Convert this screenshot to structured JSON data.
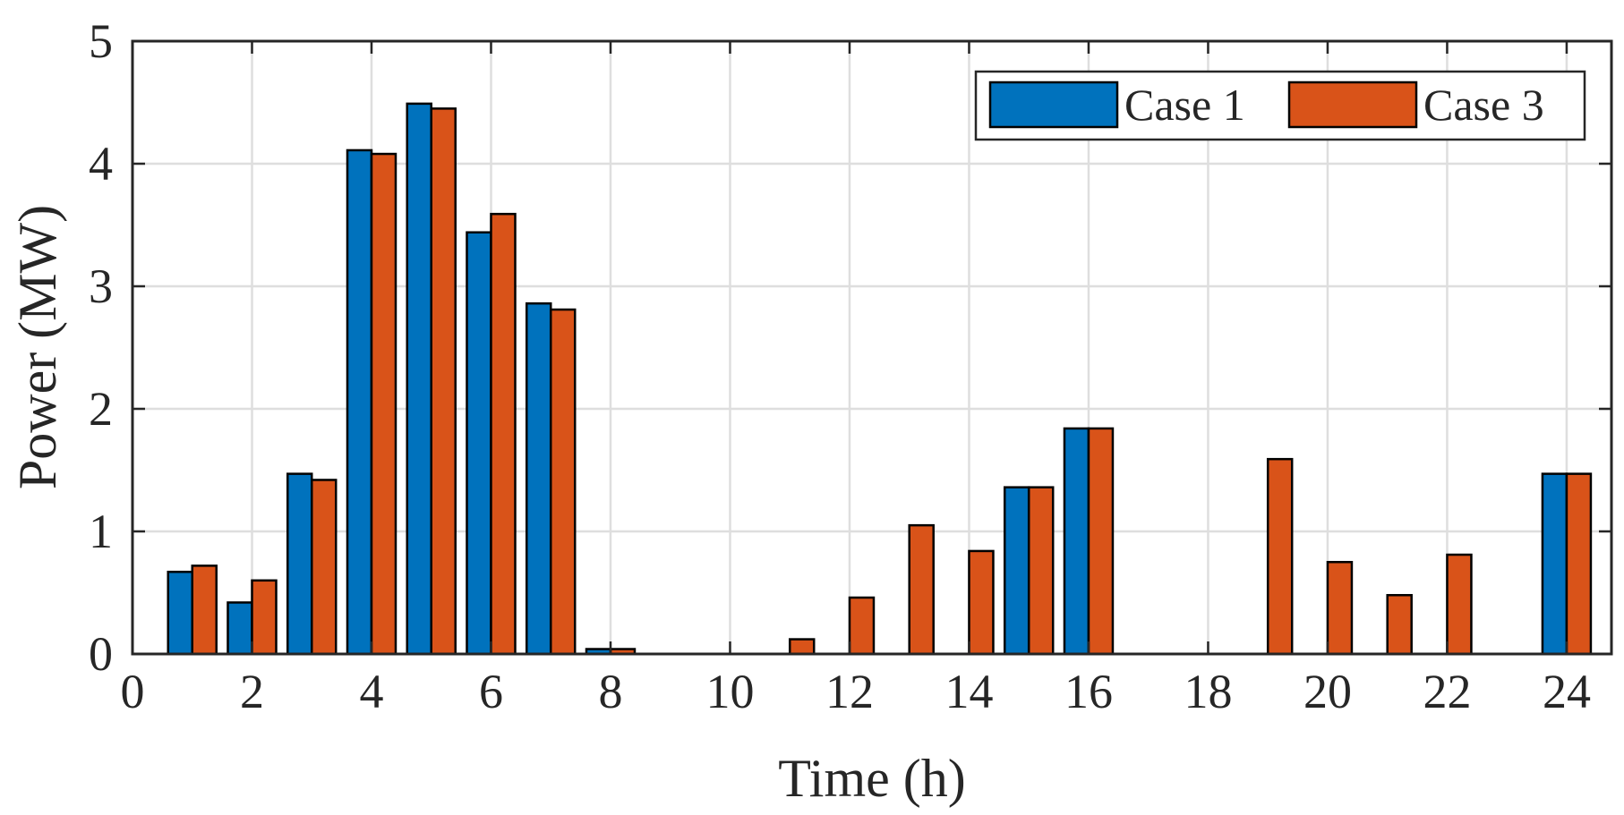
{
  "chart_data": {
    "type": "bar",
    "title": "",
    "xlabel": "Time (h)",
    "ylabel": "Power (MW)",
    "xlim": [
      0,
      24.75
    ],
    "ylim": [
      0,
      5
    ],
    "x_ticks": [
      0,
      2,
      4,
      6,
      8,
      10,
      12,
      14,
      16,
      18,
      20,
      22,
      24
    ],
    "y_ticks": [
      0,
      1,
      2,
      3,
      4,
      5
    ],
    "grid": true,
    "legend_position": "top-right",
    "categories": [
      1,
      2,
      3,
      4,
      5,
      6,
      7,
      8,
      9,
      10,
      11,
      12,
      13,
      14,
      15,
      16,
      17,
      18,
      19,
      20,
      21,
      22,
      23,
      24
    ],
    "series": [
      {
        "name": "Case 1",
        "color": "#0072BD",
        "values": [
          0.67,
          0.42,
          1.47,
          4.11,
          4.49,
          3.44,
          2.86,
          0.04,
          0,
          0,
          0,
          0,
          0,
          0,
          1.36,
          1.84,
          0,
          0,
          0,
          0,
          0,
          0,
          0,
          1.47
        ]
      },
      {
        "name": "Case 3",
        "color": "#D95319",
        "values": [
          0.72,
          0.6,
          1.42,
          4.08,
          4.45,
          3.59,
          2.81,
          0.04,
          0,
          0,
          0.12,
          0.46,
          1.05,
          0.84,
          1.36,
          1.84,
          0,
          0,
          1.59,
          0.75,
          0.48,
          0.81,
          0,
          1.47
        ]
      }
    ]
  }
}
